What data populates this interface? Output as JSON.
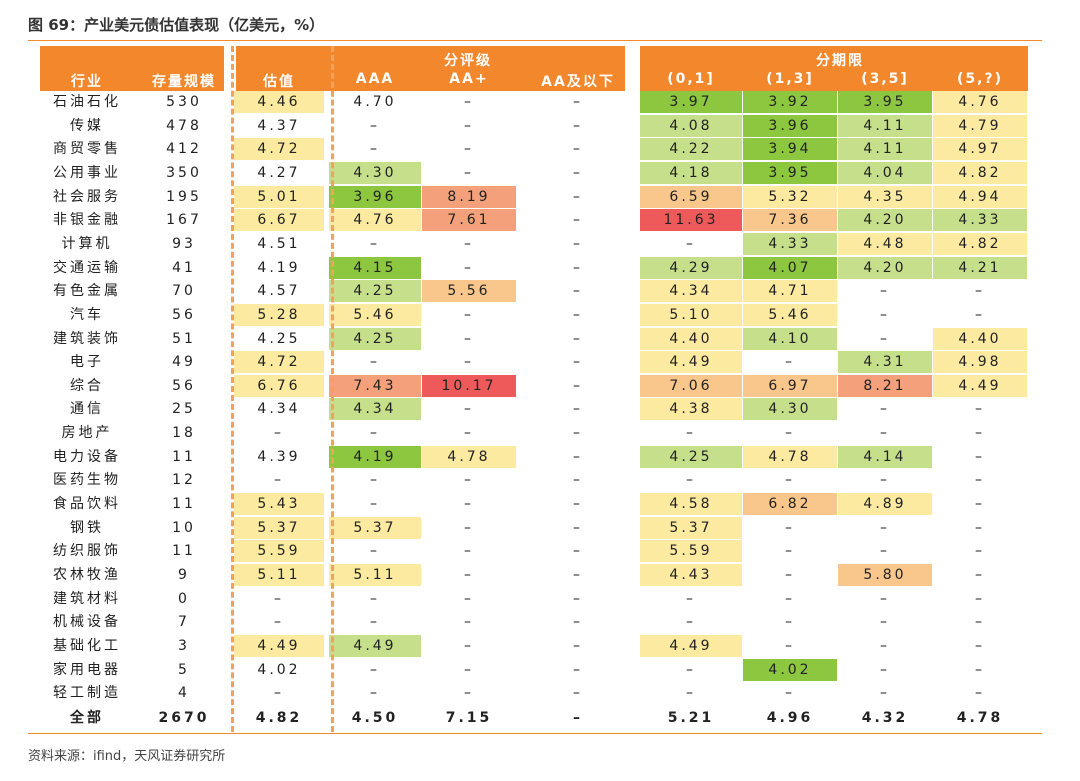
{
  "title": "图 69：产业美元债估值表现（亿美元，%）",
  "source": "资料来源：ifind，天风证券研究所",
  "header": {
    "industry": "行业",
    "stock": "存量规模",
    "valuation": "估值",
    "rating_group": "分评级",
    "term_group": "分期限",
    "ratings": [
      "AAA",
      "AA+",
      "AA及以下"
    ],
    "terms": [
      "(0,1]",
      "(1,3]",
      "(3,5]",
      "(5,?)"
    ]
  },
  "rows": [
    {
      "name": "石油石化",
      "stock": "530",
      "val": "4.46",
      "r": [
        "4.70",
        "–",
        "–"
      ],
      "t": [
        "3.97",
        "3.92",
        "3.95",
        "4.76"
      ]
    },
    {
      "name": "传媒",
      "stock": "478",
      "val": "4.37",
      "r": [
        "–",
        "–",
        "–"
      ],
      "t": [
        "4.08",
        "3.96",
        "4.11",
        "4.79"
      ]
    },
    {
      "name": "商贸零售",
      "stock": "412",
      "val": "4.72",
      "r": [
        "–",
        "–",
        "–"
      ],
      "t": [
        "4.22",
        "3.94",
        "4.11",
        "4.97"
      ]
    },
    {
      "name": "公用事业",
      "stock": "350",
      "val": "4.27",
      "r": [
        "4.30",
        "–",
        "–"
      ],
      "t": [
        "4.18",
        "3.95",
        "4.04",
        "4.82"
      ]
    },
    {
      "name": "社会服务",
      "stock": "195",
      "val": "5.01",
      "r": [
        "3.96",
        "8.19",
        "–"
      ],
      "t": [
        "6.59",
        "5.32",
        "4.35",
        "4.94"
      ]
    },
    {
      "name": "非银金融",
      "stock": "167",
      "val": "6.67",
      "r": [
        "4.76",
        "7.61",
        "–"
      ],
      "t": [
        "11.63",
        "7.36",
        "4.20",
        "4.33"
      ]
    },
    {
      "name": "计算机",
      "stock": "93",
      "val": "4.51",
      "r": [
        "–",
        "–",
        "–"
      ],
      "t": [
        "–",
        "4.33",
        "4.48",
        "4.82"
      ]
    },
    {
      "name": "交通运输",
      "stock": "41",
      "val": "4.19",
      "r": [
        "4.15",
        "–",
        "–"
      ],
      "t": [
        "4.29",
        "4.07",
        "4.20",
        "4.21"
      ]
    },
    {
      "name": "有色金属",
      "stock": "70",
      "val": "4.57",
      "r": [
        "4.25",
        "5.56",
        "–"
      ],
      "t": [
        "4.34",
        "4.71",
        "–",
        "–"
      ]
    },
    {
      "name": "汽车",
      "stock": "56",
      "val": "5.28",
      "r": [
        "5.46",
        "–",
        "–"
      ],
      "t": [
        "5.10",
        "5.46",
        "–",
        "–"
      ]
    },
    {
      "name": "建筑装饰",
      "stock": "51",
      "val": "4.25",
      "r": [
        "4.25",
        "–",
        "–"
      ],
      "t": [
        "4.40",
        "4.10",
        "–",
        "4.40"
      ]
    },
    {
      "name": "电子",
      "stock": "49",
      "val": "4.72",
      "r": [
        "–",
        "–",
        "–"
      ],
      "t": [
        "4.49",
        "–",
        "4.31",
        "4.98"
      ]
    },
    {
      "name": "综合",
      "stock": "56",
      "val": "6.76",
      "r": [
        "7.43",
        "10.17",
        "–"
      ],
      "t": [
        "7.06",
        "6.97",
        "8.21",
        "4.49"
      ]
    },
    {
      "name": "通信",
      "stock": "25",
      "val": "4.34",
      "r": [
        "4.34",
        "–",
        "–"
      ],
      "t": [
        "4.38",
        "4.30",
        "–",
        "–"
      ]
    },
    {
      "name": "房地产",
      "stock": "18",
      "val": "–",
      "r": [
        "–",
        "–",
        "–"
      ],
      "t": [
        "–",
        "–",
        "–",
        "–"
      ]
    },
    {
      "name": "电力设备",
      "stock": "11",
      "val": "4.39",
      "r": [
        "4.19",
        "4.78",
        "–"
      ],
      "t": [
        "4.25",
        "4.78",
        "4.14",
        "–"
      ]
    },
    {
      "name": "医药生物",
      "stock": "12",
      "val": "–",
      "r": [
        "–",
        "–",
        "–"
      ],
      "t": [
        "–",
        "–",
        "–",
        "–"
      ]
    },
    {
      "name": "食品饮料",
      "stock": "11",
      "val": "5.43",
      "r": [
        "–",
        "–",
        "–"
      ],
      "t": [
        "4.58",
        "6.82",
        "4.89",
        "–"
      ]
    },
    {
      "name": "钢铁",
      "stock": "10",
      "val": "5.37",
      "r": [
        "5.37",
        "–",
        "–"
      ],
      "t": [
        "5.37",
        "–",
        "–",
        "–"
      ]
    },
    {
      "name": "纺织服饰",
      "stock": "11",
      "val": "5.59",
      "r": [
        "–",
        "–",
        "–"
      ],
      "t": [
        "5.59",
        "–",
        "–",
        "–"
      ]
    },
    {
      "name": "农林牧渔",
      "stock": "9",
      "val": "5.11",
      "r": [
        "5.11",
        "–",
        "–"
      ],
      "t": [
        "4.43",
        "–",
        "5.80",
        "–"
      ]
    },
    {
      "name": "建筑材料",
      "stock": "0",
      "val": "–",
      "r": [
        "–",
        "–",
        "–"
      ],
      "t": [
        "–",
        "–",
        "–",
        "–"
      ]
    },
    {
      "name": "机械设备",
      "stock": "7",
      "val": "–",
      "r": [
        "–",
        "–",
        "–"
      ],
      "t": [
        "–",
        "–",
        "–",
        "–"
      ]
    },
    {
      "name": "基础化工",
      "stock": "3",
      "val": "4.49",
      "r": [
        "4.49",
        "–",
        "–"
      ],
      "t": [
        "4.49",
        "–",
        "–",
        "–"
      ]
    },
    {
      "name": "家用电器",
      "stock": "5",
      "val": "4.02",
      "r": [
        "–",
        "–",
        "–"
      ],
      "t": [
        "–",
        "4.02",
        "–",
        "–"
      ]
    },
    {
      "name": "轻工制造",
      "stock": "4",
      "val": "–",
      "r": [
        "–",
        "–",
        "–"
      ],
      "t": [
        "–",
        "–",
        "–",
        "–"
      ]
    }
  ],
  "total": {
    "name": "全部",
    "stock": "2670",
    "val": "4.82",
    "r": [
      "4.50",
      "7.15",
      "–"
    ],
    "t": [
      "5.21",
      "4.96",
      "4.32",
      "4.78"
    ]
  },
  "colors": {
    "header": "#f3872c",
    "dark_green": "#8dc63f",
    "light_green": "#c6df8a",
    "light_yellow": "#fbeaa0",
    "orange": "#f9c78c",
    "salmon": "#f4a07a",
    "red": "#ee5a5a"
  }
}
